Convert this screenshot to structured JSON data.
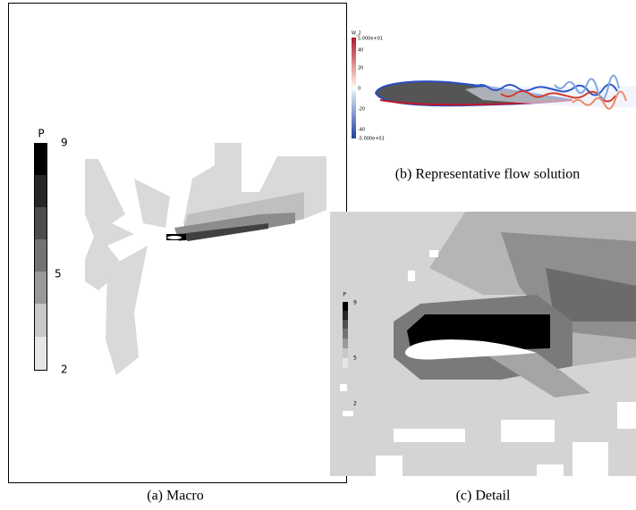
{
  "panels": [
    {
      "caption": "(a) Macro",
      "colorbar": {
        "title": "P",
        "ticks": [
          "9",
          "5",
          "2"
        ]
      }
    },
    {
      "caption": "(b) Representative flow solution",
      "colorbar": {
        "title": "W_2",
        "ticks": [
          "5.000e+01",
          "40",
          "20",
          "0",
          "-20",
          "-40",
          "-5.000e+01"
        ]
      }
    },
    {
      "caption": "(c) Detail",
      "colorbar": {
        "title": "P",
        "ticks": [
          "9",
          "5",
          "2"
        ]
      }
    }
  ]
}
